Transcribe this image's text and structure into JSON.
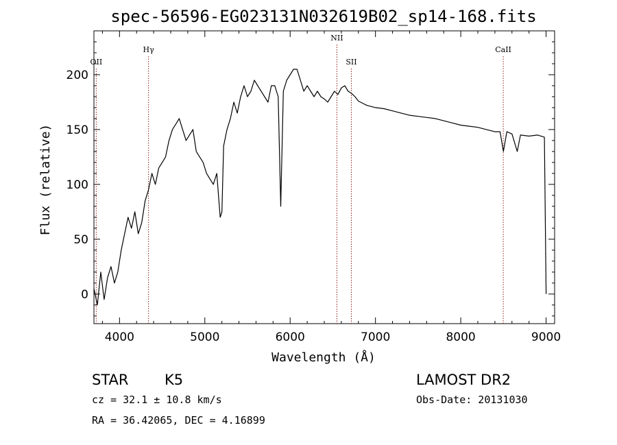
{
  "chart_data": {
    "type": "line",
    "title": "spec-56596-EG023131N032619B02_sp14-168.fits",
    "xlabel": "Wavelength (Å)",
    "ylabel": "Flux (relative)",
    "xlim": [
      3700,
      9100
    ],
    "ylim": [
      -27,
      240
    ],
    "xticks": [
      4000,
      5000,
      6000,
      7000,
      8000,
      9000
    ],
    "yticks": [
      0,
      50,
      100,
      150,
      200
    ],
    "grid": false,
    "line_color": "#000000",
    "marker_color": "#8b1a1a",
    "lines": [
      {
        "label": "OII",
        "wavelength": 3727
      },
      {
        "label": "Hγ",
        "wavelength": 4340
      },
      {
        "label": "NII",
        "wavelength": 6548
      },
      {
        "label": "SII",
        "wavelength": 6717
      },
      {
        "label": "CaII",
        "wavelength": 8498
      }
    ],
    "series": [
      {
        "x": [
          3700,
          3740,
          3780,
          3820,
          3860,
          3900,
          3940,
          3980,
          4020,
          4060,
          4100,
          4140,
          4180,
          4220,
          4260,
          4300,
          4340,
          4380,
          4420,
          4460,
          4500,
          4540,
          4580,
          4620,
          4660,
          4700,
          4740,
          4780,
          4820,
          4860,
          4900,
          4940,
          4980,
          5020,
          5060,
          5100,
          5140,
          5180,
          5200,
          5220,
          5260,
          5300,
          5340,
          5380,
          5420,
          5460,
          5500,
          5540,
          5580,
          5620,
          5660,
          5700,
          5740,
          5780,
          5820,
          5860,
          5890,
          5920,
          5960,
          6000,
          6040,
          6080,
          6120,
          6160,
          6200,
          6240,
          6280,
          6320,
          6360,
          6400,
          6440,
          6480,
          6520,
          6560,
          6600,
          6640,
          6680,
          6720,
          6760,
          6800,
          6850,
          6900,
          6950,
          7000,
          7100,
          7200,
          7300,
          7400,
          7500,
          7600,
          7700,
          7800,
          7900,
          8000,
          8100,
          8200,
          8300,
          8400,
          8460,
          8500,
          8540,
          8600,
          8662,
          8700,
          8800,
          8900,
          8980,
          9000
        ],
        "y": [
          5,
          -10,
          20,
          -5,
          15,
          25,
          10,
          20,
          40,
          55,
          70,
          60,
          75,
          55,
          65,
          85,
          95,
          110,
          100,
          115,
          120,
          125,
          140,
          150,
          155,
          160,
          150,
          140,
          145,
          150,
          130,
          125,
          120,
          110,
          105,
          100,
          110,
          70,
          75,
          135,
          150,
          160,
          175,
          165,
          180,
          190,
          180,
          185,
          195,
          190,
          185,
          180,
          175,
          190,
          190,
          180,
          80,
          185,
          195,
          200,
          205,
          205,
          195,
          185,
          190,
          185,
          180,
          185,
          180,
          178,
          175,
          180,
          185,
          182,
          188,
          190,
          185,
          183,
          180,
          176,
          174,
          172,
          171,
          170,
          169,
          167,
          165,
          163,
          162,
          161,
          160,
          158,
          156,
          154,
          153,
          152,
          150,
          148,
          148,
          130,
          148,
          146,
          130,
          145,
          144,
          145,
          143,
          0
        ]
      }
    ]
  },
  "footer": {
    "object_class": "STAR",
    "subclass": "K5",
    "survey": "LAMOST DR2",
    "cz": "cz = 32.1 ± 10.8 km/s",
    "obs_date": "Obs-Date: 20131030",
    "coords": "RA =  36.42065, DEC =   4.16899"
  }
}
